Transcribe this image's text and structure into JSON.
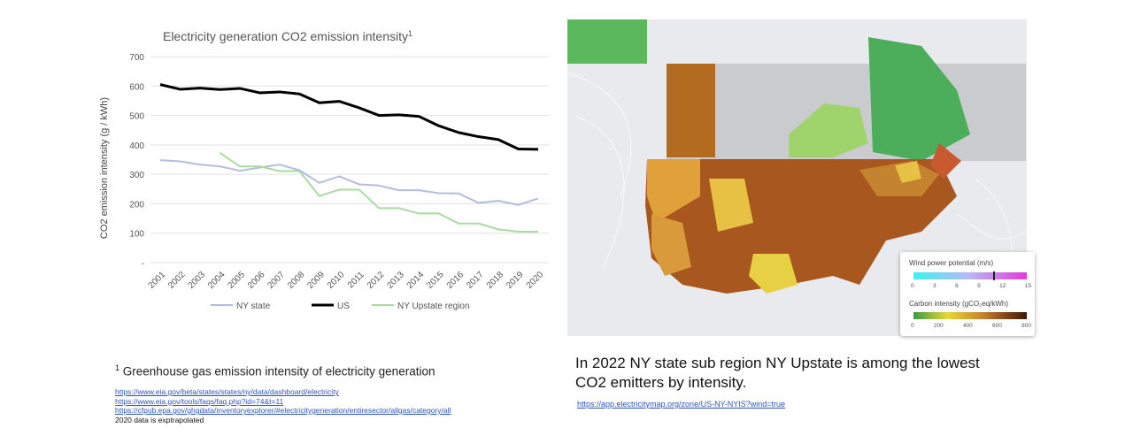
{
  "chart_data": {
    "type": "line",
    "title": "Electricity generation CO2 emission intensity",
    "title_superscript": "1",
    "ylabel": "CO2 emission intensity (g / kWh)",
    "xlabel": "",
    "ylim": [
      0,
      700
    ],
    "yticks": [
      "-",
      "100",
      "200",
      "300",
      "400",
      "500",
      "600",
      "700"
    ],
    "grid": true,
    "legend_position": "bottom",
    "categories": [
      "2001",
      "2002",
      "2003",
      "2004",
      "2005",
      "2006",
      "2007",
      "2008",
      "2009",
      "2010",
      "2011",
      "2012",
      "2013",
      "2014",
      "2015",
      "2016",
      "2017",
      "2018",
      "2019",
      "2020"
    ],
    "series": [
      {
        "name": "NY state",
        "color": "#b4bde0",
        "values": [
          348,
          344,
          333,
          327,
          312,
          323,
          333,
          314,
          271,
          293,
          266,
          262,
          246,
          246,
          236,
          235,
          203,
          210,
          196,
          218
        ]
      },
      {
        "name": "US",
        "color": "#000000",
        "values": [
          605,
          589,
          593,
          588,
          592,
          577,
          580,
          573,
          543,
          548,
          526,
          500,
          502,
          497,
          465,
          442,
          428,
          418,
          386,
          385
        ]
      },
      {
        "name": "NY Upstate region",
        "color": "#a8dca0",
        "values": [
          null,
          null,
          null,
          373,
          327,
          327,
          311,
          311,
          226,
          248,
          248,
          185,
          185,
          167,
          167,
          133,
          133,
          113,
          105,
          105
        ]
      }
    ]
  },
  "footnote": {
    "marker": "1",
    "text": "Greenhouse gas emission intensity of electricity generation",
    "links": [
      "https://www.eia.gov/beta/states/states/ny/data/dashboard/electricity",
      "https://www.eia.gov/tools/faqs/faq.php?id=74&t=11",
      "https://cfpub.epa.gov/ghgdata/inventoryexplorer/#electricitygeneration/entiresector/allgas/category/all"
    ],
    "note": "2020 data is exptrapolated"
  },
  "map": {
    "wind_legend": {
      "title": "Wind power potential (m/s)",
      "ticks": [
        "0",
        "3",
        "6",
        "9",
        "12",
        "15"
      ],
      "marker_value": 10.5
    },
    "carbon_legend": {
      "title": "Carbon intensity (gCO₂eq/kWh)",
      "ticks": [
        "0",
        "200",
        "400",
        "600",
        "800"
      ]
    },
    "caption": "In 2022 NY state sub region NY Upstate is among the lowest CO2 emitters by intensity.",
    "link": "https://app.electricitymap.org/zone/US-NY-NYIS?wind=true"
  }
}
